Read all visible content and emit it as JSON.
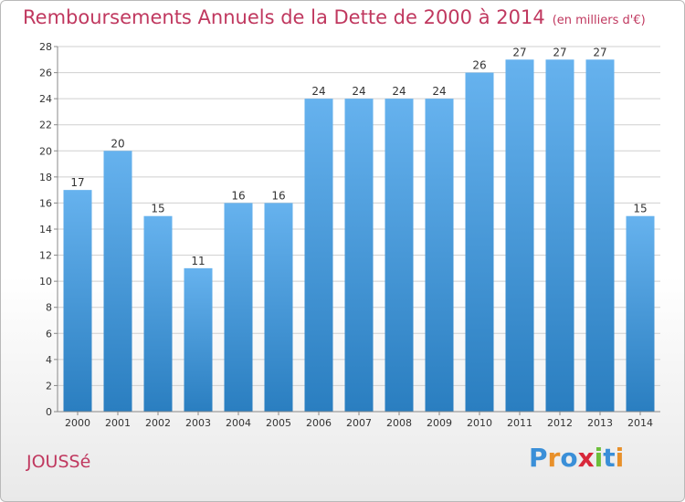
{
  "title": "Remboursements Annuels de la Dette de 2000 à 2014",
  "unit": "(en milliers d'€)",
  "town": "JOUSSé",
  "logo": {
    "text": "Proxiti",
    "letters": [
      "P",
      "r",
      "o",
      "x",
      "i",
      "t",
      "i"
    ],
    "colors": [
      "#3a8fd8",
      "#e8902a",
      "#3a8fd8",
      "#d8283a",
      "#6cbf3a",
      "#3a8fd8",
      "#e8902a"
    ]
  },
  "colors": {
    "title": "#c0385f",
    "bar_top": "#66b2ee",
    "bar_bottom": "#2a7ec0",
    "grid": "#cfcfcf",
    "axis": "#888888",
    "text": "#333333"
  },
  "chart_data": {
    "type": "bar",
    "title": "Remboursements Annuels de la Dette de 2000 à 2014",
    "xlabel": "",
    "ylabel": "",
    "categories": [
      "2000",
      "2001",
      "2002",
      "2003",
      "2004",
      "2005",
      "2006",
      "2007",
      "2008",
      "2009",
      "2010",
      "2011",
      "2012",
      "2013",
      "2014"
    ],
    "values": [
      17,
      20,
      15,
      11,
      16,
      16,
      24,
      24,
      24,
      24,
      26,
      27,
      27,
      27,
      15
    ],
    "ylim": [
      0,
      28
    ],
    "yticks": [
      0,
      2,
      4,
      6,
      8,
      10,
      12,
      14,
      16,
      18,
      20,
      22,
      24,
      26,
      28
    ],
    "grid": true,
    "data_labels": true
  }
}
